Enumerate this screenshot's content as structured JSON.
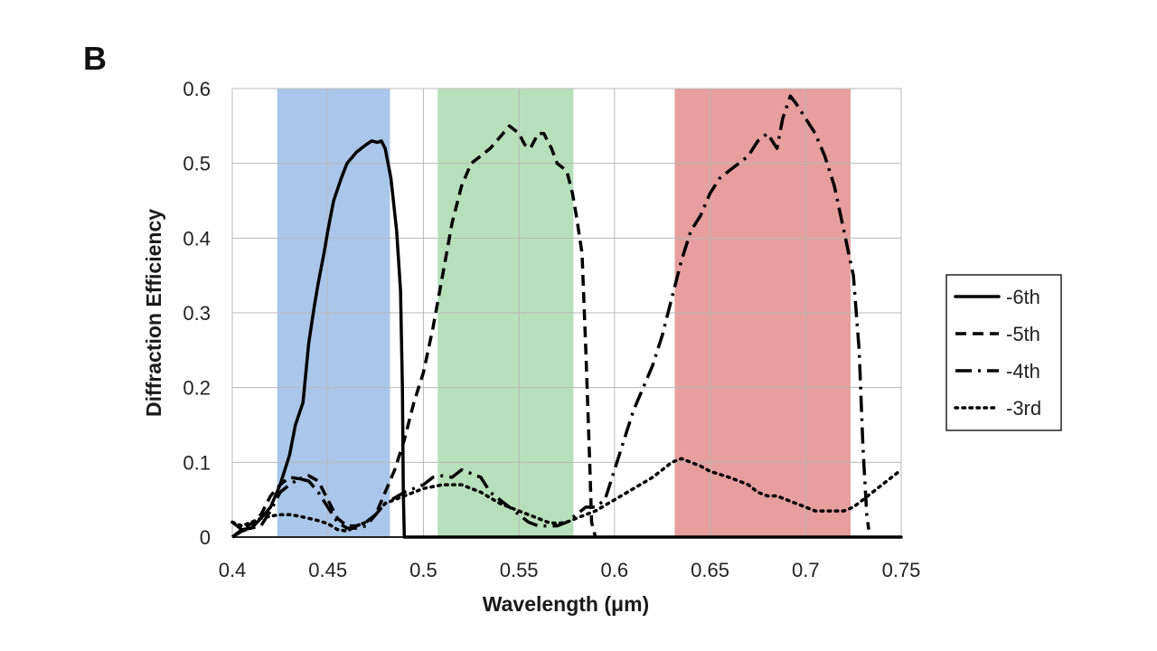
{
  "panel_label": "B",
  "chart_data": {
    "type": "line",
    "xlabel": "Wavelength (μm)",
    "ylabel": "Diffraction Efficiency",
    "xlim": [
      0.4,
      0.75
    ],
    "ylim": [
      0,
      0.6
    ],
    "x_ticks": [
      "0.4",
      "0.45",
      "0.5",
      "0.55",
      "0.6",
      "0.65",
      "0.7",
      "0.75"
    ],
    "y_ticks": [
      "0",
      "0.1",
      "0.2",
      "0.3",
      "0.4",
      "0.5",
      "0.6"
    ],
    "grid": true,
    "legend_position": "right",
    "bands": [
      {
        "range": [
          0.4235,
          0.4825
        ],
        "color": "#aac6ea"
      },
      {
        "range": [
          0.5075,
          0.5785
        ],
        "color": "#b6e0bc"
      },
      {
        "range": [
          0.6315,
          0.7235
        ],
        "color": "#e69e9e"
      }
    ],
    "series": [
      {
        "name": "-6th",
        "style": "solid",
        "points": [
          [
            0.4,
            0.02
          ],
          [
            0.405,
            0.01
          ],
          [
            0.41,
            0.012
          ],
          [
            0.415,
            0.025
          ],
          [
            0.42,
            0.04
          ],
          [
            0.425,
            0.07
          ],
          [
            0.43,
            0.11
          ],
          [
            0.433,
            0.15
          ],
          [
            0.437,
            0.18
          ],
          [
            0.44,
            0.26
          ],
          [
            0.443,
            0.31
          ],
          [
            0.445,
            0.34
          ],
          [
            0.448,
            0.38
          ],
          [
            0.45,
            0.41
          ],
          [
            0.453,
            0.45
          ],
          [
            0.457,
            0.48
          ],
          [
            0.46,
            0.5
          ],
          [
            0.465,
            0.515
          ],
          [
            0.47,
            0.525
          ],
          [
            0.473,
            0.53
          ],
          [
            0.476,
            0.528
          ],
          [
            0.478,
            0.53
          ],
          [
            0.48,
            0.52
          ],
          [
            0.483,
            0.48
          ],
          [
            0.486,
            0.41
          ],
          [
            0.488,
            0.33
          ],
          [
            0.489,
            0.2
          ],
          [
            0.4895,
            0.06
          ],
          [
            0.49,
            0.0
          ],
          [
            0.75,
            0.0
          ]
        ]
      },
      {
        "name": "-5th",
        "style": "dashed",
        "points": [
          [
            0.4,
            0.0
          ],
          [
            0.405,
            0.01
          ],
          [
            0.41,
            0.018
          ],
          [
            0.415,
            0.03
          ],
          [
            0.42,
            0.055
          ],
          [
            0.425,
            0.07
          ],
          [
            0.43,
            0.08
          ],
          [
            0.435,
            0.078
          ],
          [
            0.44,
            0.082
          ],
          [
            0.445,
            0.075
          ],
          [
            0.45,
            0.05
          ],
          [
            0.455,
            0.025
          ],
          [
            0.46,
            0.015
          ],
          [
            0.465,
            0.015
          ],
          [
            0.47,
            0.02
          ],
          [
            0.475,
            0.03
          ],
          [
            0.48,
            0.06
          ],
          [
            0.485,
            0.09
          ],
          [
            0.49,
            0.13
          ],
          [
            0.495,
            0.18
          ],
          [
            0.5,
            0.22
          ],
          [
            0.505,
            0.28
          ],
          [
            0.51,
            0.35
          ],
          [
            0.515,
            0.42
          ],
          [
            0.52,
            0.47
          ],
          [
            0.525,
            0.5
          ],
          [
            0.53,
            0.51
          ],
          [
            0.535,
            0.52
          ],
          [
            0.54,
            0.535
          ],
          [
            0.545,
            0.55
          ],
          [
            0.55,
            0.54
          ],
          [
            0.553,
            0.525
          ],
          [
            0.556,
            0.52
          ],
          [
            0.56,
            0.54
          ],
          [
            0.563,
            0.54
          ],
          [
            0.567,
            0.52
          ],
          [
            0.57,
            0.5
          ],
          [
            0.575,
            0.49
          ],
          [
            0.578,
            0.46
          ],
          [
            0.58,
            0.43
          ],
          [
            0.583,
            0.38
          ],
          [
            0.585,
            0.25
          ],
          [
            0.587,
            0.1
          ],
          [
            0.588,
            0.02
          ],
          [
            0.59,
            0.0
          ]
        ]
      },
      {
        "name": "-4th",
        "style": "dashdot",
        "points": [
          [
            0.4,
            0.0
          ],
          [
            0.405,
            0.008
          ],
          [
            0.41,
            0.012
          ],
          [
            0.415,
            0.015
          ],
          [
            0.42,
            0.035
          ],
          [
            0.425,
            0.06
          ],
          [
            0.43,
            0.07
          ],
          [
            0.435,
            0.078
          ],
          [
            0.44,
            0.075
          ],
          [
            0.445,
            0.06
          ],
          [
            0.45,
            0.04
          ],
          [
            0.455,
            0.02
          ],
          [
            0.46,
            0.012
          ],
          [
            0.465,
            0.012
          ],
          [
            0.47,
            0.015
          ],
          [
            0.48,
            0.045
          ],
          [
            0.49,
            0.06
          ],
          [
            0.5,
            0.07
          ],
          [
            0.505,
            0.08
          ],
          [
            0.51,
            0.082
          ],
          [
            0.515,
            0.08
          ],
          [
            0.52,
            0.09
          ],
          [
            0.525,
            0.085
          ],
          [
            0.53,
            0.08
          ],
          [
            0.535,
            0.06
          ],
          [
            0.54,
            0.05
          ],
          [
            0.545,
            0.04
          ],
          [
            0.55,
            0.03
          ],
          [
            0.555,
            0.02
          ],
          [
            0.56,
            0.015
          ],
          [
            0.565,
            0.015
          ],
          [
            0.57,
            0.015
          ],
          [
            0.575,
            0.02
          ],
          [
            0.58,
            0.03
          ],
          [
            0.585,
            0.04
          ],
          [
            0.59,
            0.04
          ],
          [
            0.595,
            0.05
          ],
          [
            0.6,
            0.09
          ],
          [
            0.605,
            0.13
          ],
          [
            0.61,
            0.17
          ],
          [
            0.615,
            0.2
          ],
          [
            0.62,
            0.23
          ],
          [
            0.625,
            0.27
          ],
          [
            0.63,
            0.32
          ],
          [
            0.635,
            0.37
          ],
          [
            0.64,
            0.41
          ],
          [
            0.645,
            0.43
          ],
          [
            0.65,
            0.46
          ],
          [
            0.655,
            0.48
          ],
          [
            0.66,
            0.49
          ],
          [
            0.665,
            0.5
          ],
          [
            0.67,
            0.51
          ],
          [
            0.675,
            0.53
          ],
          [
            0.68,
            0.54
          ],
          [
            0.685,
            0.52
          ],
          [
            0.688,
            0.56
          ],
          [
            0.692,
            0.59
          ],
          [
            0.695,
            0.58
          ],
          [
            0.7,
            0.56
          ],
          [
            0.705,
            0.54
          ],
          [
            0.71,
            0.51
          ],
          [
            0.715,
            0.47
          ],
          [
            0.72,
            0.41
          ],
          [
            0.725,
            0.35
          ],
          [
            0.728,
            0.25
          ],
          [
            0.73,
            0.12
          ],
          [
            0.732,
            0.03
          ],
          [
            0.733,
            0.01
          ]
        ]
      },
      {
        "name": "-3rd",
        "style": "dotted",
        "points": [
          [
            0.4,
            0.02
          ],
          [
            0.405,
            0.015
          ],
          [
            0.41,
            0.02
          ],
          [
            0.415,
            0.025
          ],
          [
            0.42,
            0.028
          ],
          [
            0.425,
            0.03
          ],
          [
            0.43,
            0.03
          ],
          [
            0.435,
            0.028
          ],
          [
            0.44,
            0.025
          ],
          [
            0.445,
            0.022
          ],
          [
            0.45,
            0.018
          ],
          [
            0.455,
            0.01
          ],
          [
            0.46,
            0.008
          ],
          [
            0.465,
            0.015
          ],
          [
            0.47,
            0.02
          ],
          [
            0.475,
            0.03
          ],
          [
            0.48,
            0.045
          ],
          [
            0.49,
            0.055
          ],
          [
            0.5,
            0.065
          ],
          [
            0.51,
            0.07
          ],
          [
            0.52,
            0.07
          ],
          [
            0.53,
            0.06
          ],
          [
            0.54,
            0.045
          ],
          [
            0.55,
            0.035
          ],
          [
            0.555,
            0.03
          ],
          [
            0.56,
            0.025
          ],
          [
            0.565,
            0.02
          ],
          [
            0.57,
            0.018
          ],
          [
            0.575,
            0.02
          ],
          [
            0.58,
            0.025
          ],
          [
            0.585,
            0.03
          ],
          [
            0.59,
            0.035
          ],
          [
            0.6,
            0.05
          ],
          [
            0.61,
            0.065
          ],
          [
            0.62,
            0.08
          ],
          [
            0.63,
            0.1
          ],
          [
            0.635,
            0.105
          ],
          [
            0.64,
            0.1
          ],
          [
            0.645,
            0.095
          ],
          [
            0.65,
            0.088
          ],
          [
            0.66,
            0.08
          ],
          [
            0.67,
            0.07
          ],
          [
            0.675,
            0.06
          ],
          [
            0.68,
            0.055
          ],
          [
            0.685,
            0.055
          ],
          [
            0.69,
            0.05
          ],
          [
            0.7,
            0.04
          ],
          [
            0.705,
            0.035
          ],
          [
            0.71,
            0.035
          ],
          [
            0.715,
            0.035
          ],
          [
            0.72,
            0.035
          ],
          [
            0.725,
            0.04
          ],
          [
            0.73,
            0.05
          ],
          [
            0.735,
            0.06
          ],
          [
            0.74,
            0.07
          ],
          [
            0.745,
            0.08
          ],
          [
            0.75,
            0.09
          ]
        ]
      }
    ]
  }
}
